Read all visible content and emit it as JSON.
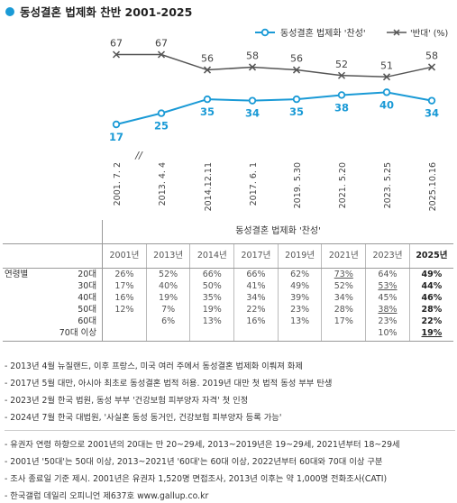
{
  "title": "동성결혼 법제화 찬반 2001-2025",
  "chart_data": {
    "type": "line",
    "x": [
      "2001. 7. 2",
      "2013. 4. 4",
      "2014.12.11",
      "2017. 6. 1",
      "2019. 5.30",
      "2021. 5.20",
      "2023. 5.25",
      "2025.10.16"
    ],
    "series": [
      {
        "name": "동성결혼 법제화 '찬성'",
        "values": [
          17,
          25,
          35,
          34,
          35,
          38,
          40,
          34
        ],
        "color": "#1a9ad6",
        "marker": "circle"
      },
      {
        "name": "'반대' (%)",
        "values": [
          67,
          67,
          56,
          58,
          56,
          52,
          51,
          58
        ],
        "color": "#555555",
        "marker": "x"
      }
    ],
    "axis_break_after": "2001. 7. 2",
    "axis_break_symbol": "//",
    "legend": "top-right",
    "grid": false
  },
  "table": {
    "group_header": "동성결혼 법제화 '찬성'",
    "years": [
      "2001년",
      "2013년",
      "2014년",
      "2017년",
      "2019년",
      "2021년",
      "2023년",
      "2025년"
    ],
    "row_group_label": "연령별",
    "rows": [
      {
        "label": "20대",
        "values": [
          "26%",
          "52%",
          "66%",
          "66%",
          "62%",
          "73%",
          "64%",
          "49%"
        ]
      },
      {
        "label": "30대",
        "values": [
          "17%",
          "40%",
          "50%",
          "41%",
          "49%",
          "52%",
          "53%",
          "44%"
        ]
      },
      {
        "label": "40대",
        "values": [
          "16%",
          "19%",
          "35%",
          "34%",
          "39%",
          "34%",
          "45%",
          "46%"
        ]
      },
      {
        "label": "50대",
        "values": [
          "12%",
          "7%",
          "19%",
          "22%",
          "23%",
          "28%",
          "38%",
          "28%"
        ]
      },
      {
        "label": "60대",
        "values": [
          "",
          "6%",
          "13%",
          "16%",
          "13%",
          "17%",
          "23%",
          "22%"
        ]
      },
      {
        "label": "70대 이상",
        "values": [
          "",
          "",
          "",
          "",
          "",
          "",
          "10%",
          "19%"
        ]
      }
    ]
  },
  "notes": [
    "- 2013년 4월 뉴질랜드, 이후 프랑스, 미국 여러 주에서 동성결혼 법제화 이뤄져 화제",
    "- 2017년 5월 대만, 아시아 최초로 동성결혼 법적 허용. 2019년 대만 첫 법적 동성 부부 탄생",
    "- 2023년 2월 한국 법원, 동성 부부 '건강보험 피부양자 자격' 첫 인정",
    "- 2024년 7월 한국 대법원, '사실혼 동성 동거인, 건강보험 피부양자 등록 가능'"
  ],
  "footnotes": [
    "- 유권자 연령 하향으로 2001년의 20대는 만 20~29세, 2013~2019년은 19~29세, 2021년부터 18~29세",
    "- 2001년 '50대'는 50대 이상, 2013~2021년 '60대'는 60대 이상, 2022년부터 60대와 70대 이상 구분",
    "- 조사 종료일 기준 제시. 2001년은 유권자 1,520명 면접조사, 2013년 이후는 약 1,000명 전화조사(CATI)",
    "- 한국갤럽 데일리 오피니언 제637호 www.gallup.co.kr"
  ]
}
